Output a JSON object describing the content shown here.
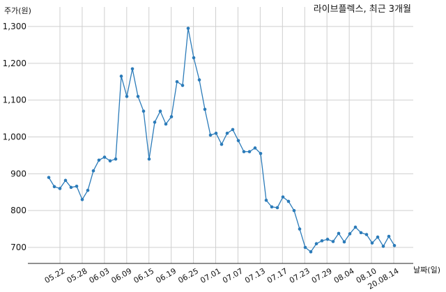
{
  "chart_data": {
    "type": "line",
    "title": "라이브플렉스, 최근 3개월",
    "xlabel": "날짜(일)",
    "ylabel": "주가(원)",
    "ylim": [
      650,
      1320
    ],
    "yticks": [
      700,
      800,
      900,
      1000,
      1100,
      1200,
      1300
    ],
    "ytick_labels": [
      "700",
      "800",
      "900",
      "1,000",
      "1,100",
      "1,200",
      "1,300"
    ],
    "xtick_labels": [
      "05.22",
      "05.28",
      "06.03",
      "06.09",
      "06.15",
      "06.19",
      "06.25",
      "07.01",
      "07.07",
      "07.13",
      "07.17",
      "07.23",
      "07.29",
      "08.04",
      "08.10",
      "20.08.14"
    ],
    "grid": true,
    "color": "#2b7bb9",
    "series": [
      {
        "values": [
          890,
          865,
          860,
          882,
          863,
          866,
          830,
          855,
          908,
          937,
          945,
          935,
          940,
          1165,
          1110,
          1185,
          1110,
          1070,
          940,
          1040,
          1070,
          1035,
          1055,
          1150,
          1140,
          1295,
          1215,
          1155,
          1075,
          1005,
          1010,
          980,
          1010,
          1020,
          990,
          960,
          960,
          970,
          955,
          828,
          810,
          808,
          837,
          825,
          800,
          750,
          700,
          688,
          710,
          718,
          722,
          716,
          738,
          715,
          737,
          755,
          740,
          735,
          712,
          728,
          703,
          730,
          705
        ]
      }
    ]
  }
}
